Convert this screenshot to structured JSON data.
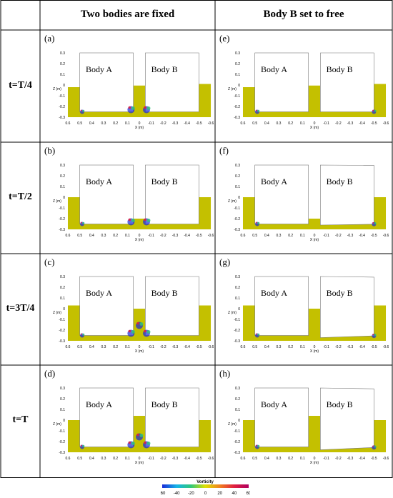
{
  "header": {
    "col1": "Two bodies are fixed",
    "col2": "Body B set to free"
  },
  "rows": [
    "t=T/4",
    "t=T/2",
    "t=3T/4",
    "t=T"
  ],
  "panels": [
    {
      "tag": "(a)",
      "free": false,
      "phase": 0.25
    },
    {
      "tag": "(e)",
      "free": true,
      "phase": 0.25
    },
    {
      "tag": "(b)",
      "free": false,
      "phase": 0.5
    },
    {
      "tag": "(f)",
      "free": true,
      "phase": 0.5
    },
    {
      "tag": "(c)",
      "free": false,
      "phase": 0.75
    },
    {
      "tag": "(g)",
      "free": true,
      "phase": 0.75
    },
    {
      "tag": "(d)",
      "free": false,
      "phase": 1.0
    },
    {
      "tag": "(h)",
      "free": true,
      "phase": 1.0
    }
  ],
  "plot": {
    "body_a": "Body A",
    "body_b": "Body B",
    "zlabel": "Z (m)",
    "xlabel": "X (m)",
    "yticks": [
      "0.3",
      "0.2",
      "0.1",
      "0",
      "-0.1",
      "-0.2",
      "-0.3"
    ],
    "xticks": [
      "0.6",
      "0.5",
      "0.4",
      "0.3",
      "0.2",
      "0.1",
      "0",
      "-0.1",
      "-0.2",
      "-0.3",
      "-0.4",
      "-0.5",
      "-0.6"
    ],
    "fluid_color": "#c4c000"
  },
  "colorbar": {
    "title": "Vorticity",
    "ticks": [
      "-60",
      "-40",
      "-20",
      "0",
      "20",
      "40",
      "60"
    ],
    "colors": [
      "#1a2ad8",
      "#16b4e8",
      "#30c878",
      "#dfe000",
      "#f08020",
      "#e02040",
      "#b00060"
    ]
  }
}
